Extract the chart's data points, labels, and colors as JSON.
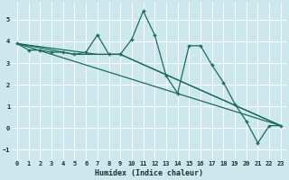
{
  "xlabel": "Humidex (Indice chaleur)",
  "bg_color": "#cce8ec",
  "grid_color": "#ffffff",
  "line_color": "#1a6b5a",
  "xlim": [
    -0.5,
    23.5
  ],
  "ylim": [
    -1.5,
    5.8
  ],
  "xticks": [
    0,
    1,
    2,
    3,
    4,
    5,
    6,
    7,
    8,
    9,
    10,
    11,
    12,
    13,
    14,
    15,
    16,
    17,
    18,
    19,
    20,
    21,
    22,
    23
  ],
  "yticks": [
    -1,
    0,
    1,
    2,
    3,
    4,
    5
  ],
  "series1_x": [
    0,
    1,
    2,
    3,
    4,
    5,
    6,
    7,
    8,
    9,
    10,
    11,
    12,
    13,
    14,
    15,
    16,
    17,
    18,
    19,
    20,
    21,
    22,
    23
  ],
  "series1_y": [
    3.9,
    3.6,
    3.6,
    3.5,
    3.5,
    3.4,
    3.5,
    4.3,
    3.4,
    3.4,
    4.1,
    5.4,
    4.3,
    2.4,
    1.6,
    3.8,
    3.8,
    2.9,
    2.1,
    1.1,
    0.3,
    -0.7,
    0.1,
    0.1
  ],
  "line2_x": [
    0,
    23
  ],
  "line2_y": [
    3.9,
    0.1
  ],
  "line3_x": [
    0,
    5,
    9,
    23
  ],
  "line3_y": [
    3.9,
    3.4,
    3.4,
    0.1
  ],
  "line4_x": [
    0,
    7,
    9,
    23
  ],
  "line4_y": [
    3.9,
    3.4,
    3.4,
    0.1
  ]
}
